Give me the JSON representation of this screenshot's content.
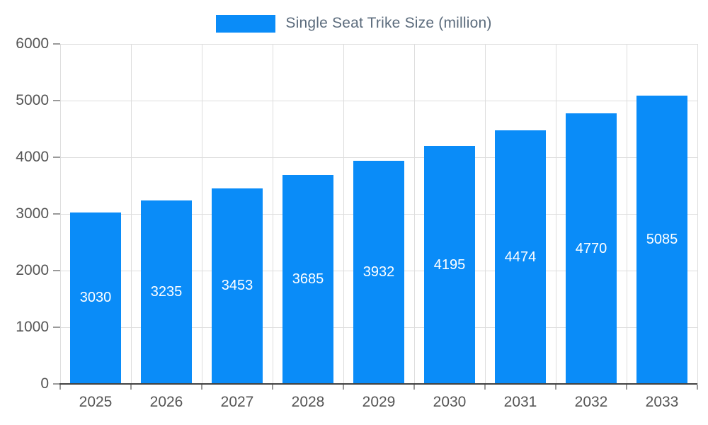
{
  "chart_data": {
    "type": "bar",
    "title": "Single Seat Trike Size (million)",
    "categories": [
      "2025",
      "2026",
      "2027",
      "2028",
      "2029",
      "2030",
      "2031",
      "2032",
      "2033"
    ],
    "values": [
      3030,
      3235,
      3453,
      3685,
      3932,
      4195,
      4474,
      4770,
      5085
    ],
    "xlabel": "",
    "ylabel": "",
    "ylim": [
      0,
      6000
    ],
    "yticks": [
      0,
      1000,
      2000,
      3000,
      4000,
      5000,
      6000
    ],
    "grid": true,
    "legend_position": "top",
    "bar_color": "#0a8cf8",
    "value_label_color": "#ffffff",
    "axis_text_color": "#555555",
    "legend_text_color": "#5b6b7c",
    "grid_color": "#dddddd"
  },
  "legend": {
    "label": "Single Seat Trike Size (million)"
  }
}
